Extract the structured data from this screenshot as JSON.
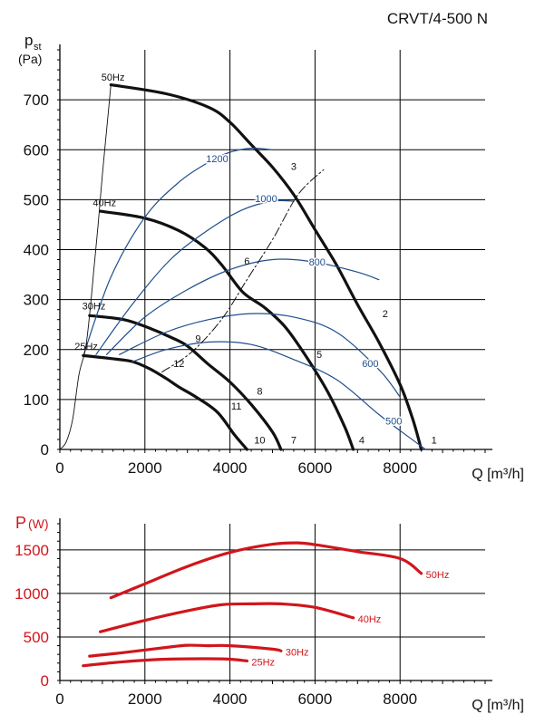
{
  "model": "CRVT/4-500 N",
  "colors": {
    "pressure_curve": "#111111",
    "iso_curve": "#1f4e8c",
    "power_curve": "#d0161c",
    "power_axis_label": "#d0161c",
    "grid": "#000000"
  },
  "chart_data": [
    {
      "type": "line",
      "title": "",
      "xlabel": "Q [m³/h]",
      "ylabel_main": "p",
      "ylabel_sub": "st",
      "ylabel_unit": "(Pa)",
      "xlim": [
        0,
        10000
      ],
      "ylim": [
        0,
        800
      ],
      "x_ticks": [
        0,
        2000,
        4000,
        6000,
        8000
      ],
      "y_ticks": [
        0,
        100,
        200,
        300,
        400,
        500,
        600,
        700
      ],
      "grid": true,
      "series": [
        {
          "name": "50Hz",
          "role": "speed",
          "x": [
            1200,
            2500,
            3500,
            4000,
            4500,
            5000,
            5500,
            6000,
            6500,
            7000,
            7500,
            8000,
            8300,
            8500
          ],
          "y": [
            730,
            712,
            685,
            655,
            610,
            565,
            510,
            440,
            370,
            290,
            215,
            130,
            60,
            0
          ]
        },
        {
          "name": "40Hz",
          "role": "speed",
          "x": [
            950,
            2000,
            2800,
            3400,
            3800,
            4300,
            4800,
            5300,
            5800,
            6300,
            6700,
            6900
          ],
          "y": [
            477,
            463,
            438,
            405,
            370,
            315,
            285,
            245,
            185,
            115,
            45,
            0
          ]
        },
        {
          "name": "30Hz",
          "role": "speed",
          "x": [
            700,
            1500,
            2100,
            2600,
            3000,
            3500,
            4000,
            4500,
            5000,
            5200
          ],
          "y": [
            268,
            260,
            243,
            225,
            207,
            170,
            135,
            90,
            35,
            0
          ]
        },
        {
          "name": "25Hz",
          "role": "speed",
          "x": [
            550,
            1200,
            1700,
            2100,
            2500,
            2800,
            3200,
            3700,
            4100,
            4400
          ],
          "y": [
            188,
            182,
            176,
            162,
            142,
            125,
            105,
            75,
            30,
            0
          ]
        },
        {
          "name": "1200",
          "role": "power-iso",
          "x": [
            560,
            1200,
            2000,
            2800,
            3500,
            4000,
            4500,
            5000
          ],
          "y": [
            190,
            345,
            465,
            535,
            575,
            595,
            603,
            600
          ]
        },
        {
          "name": "1000",
          "role": "power-iso",
          "x": [
            850,
            1700,
            2600,
            3500,
            4300,
            5000,
            5500
          ],
          "y": [
            190,
            290,
            380,
            440,
            480,
            497,
            497
          ]
        },
        {
          "name": "800",
          "role": "power-iso",
          "x": [
            1100,
            2000,
            3000,
            4000,
            5000,
            6000,
            7000,
            7500
          ],
          "y": [
            190,
            265,
            320,
            360,
            380,
            375,
            355,
            340
          ]
        },
        {
          "name": "600",
          "role": "power-iso",
          "x": [
            1400,
            2500,
            3500,
            4500,
            5500,
            6500,
            7500,
            8000
          ],
          "y": [
            190,
            235,
            260,
            272,
            265,
            235,
            160,
            105
          ]
        },
        {
          "name": "500",
          "role": "power-iso",
          "x": [
            1700,
            2500,
            3500,
            4500,
            5500,
            6500,
            7500,
            8200,
            8600
          ],
          "y": [
            175,
            200,
            215,
            210,
            180,
            140,
            70,
            25,
            0
          ]
        },
        {
          "name": "",
          "role": "system-line",
          "dashed": true,
          "x": [
            2400,
            3100,
            3800,
            4400,
            5000,
            5600,
            6200
          ],
          "y": [
            155,
            195,
            260,
            340,
            420,
            510,
            560
          ]
        },
        {
          "name": "",
          "role": "start-line",
          "x": [
            0,
            150,
            300,
            450,
            600,
            700,
            800,
            900,
            1000,
            1100,
            1200
          ],
          "y": [
            0,
            15,
            60,
            150,
            200,
            270,
            360,
            450,
            550,
            640,
            730
          ]
        }
      ],
      "points": [
        {
          "label": "1",
          "x": 8800,
          "y": 12
        },
        {
          "label": "2",
          "x": 7650,
          "y": 265
        },
        {
          "label": "3",
          "x": 5500,
          "y": 560
        },
        {
          "label": "4",
          "x": 7100,
          "y": 12
        },
        {
          "label": "5",
          "x": 6100,
          "y": 183
        },
        {
          "label": "6",
          "x": 4400,
          "y": 370
        },
        {
          "label": "7",
          "x": 5500,
          "y": 12
        },
        {
          "label": "8",
          "x": 4700,
          "y": 110
        },
        {
          "label": "9",
          "x": 3250,
          "y": 215
        },
        {
          "label": "10",
          "x": 4700,
          "y": 12
        },
        {
          "label": "11",
          "x": 4150,
          "y": 80
        },
        {
          "label": "12",
          "x": 2800,
          "y": 165
        }
      ],
      "annotations": [
        {
          "text": "50Hz",
          "x": 1250,
          "y": 738
        },
        {
          "text": "40Hz",
          "x": 1050,
          "y": 487
        },
        {
          "text": "30Hz",
          "x": 800,
          "y": 280
        },
        {
          "text": "25Hz",
          "x": 620,
          "y": 200
        },
        {
          "text": "1200",
          "x": 3700,
          "y": 575
        },
        {
          "text": "1000",
          "x": 4850,
          "y": 495
        },
        {
          "text": "800",
          "x": 6050,
          "y": 368
        },
        {
          "text": "600",
          "x": 7300,
          "y": 165
        },
        {
          "text": "500",
          "x": 7850,
          "y": 50
        }
      ]
    },
    {
      "type": "line",
      "title": "",
      "xlabel": "Q [m³/h]",
      "ylabel_main": "P",
      "ylabel_unit": "(W)",
      "xlim": [
        0,
        10000
      ],
      "ylim": [
        0,
        1800
      ],
      "x_ticks": [
        0,
        2000,
        4000,
        6000,
        8000
      ],
      "y_ticks": [
        0,
        500,
        1000,
        1500
      ],
      "grid": true,
      "series": [
        {
          "name": "50Hz",
          "x": [
            1200,
            2000,
            3000,
            4000,
            5000,
            5600,
            6000,
            7000,
            8000,
            8500
          ],
          "y": [
            950,
            1110,
            1310,
            1470,
            1565,
            1580,
            1560,
            1480,
            1400,
            1230
          ]
        },
        {
          "name": "40Hz",
          "x": [
            950,
            2000,
            3000,
            3800,
            4500,
            5200,
            6000,
            6900
          ],
          "y": [
            560,
            690,
            800,
            870,
            880,
            880,
            840,
            720
          ]
        },
        {
          "name": "30Hz",
          "x": [
            700,
            1500,
            2500,
            3000,
            3500,
            4000,
            5000,
            5200
          ],
          "y": [
            280,
            320,
            380,
            405,
            400,
            400,
            360,
            340
          ]
        },
        {
          "name": "25Hz",
          "x": [
            550,
            1500,
            2500,
            3500,
            4000,
            4400
          ],
          "y": [
            170,
            215,
            245,
            250,
            245,
            225
          ]
        }
      ]
    }
  ]
}
